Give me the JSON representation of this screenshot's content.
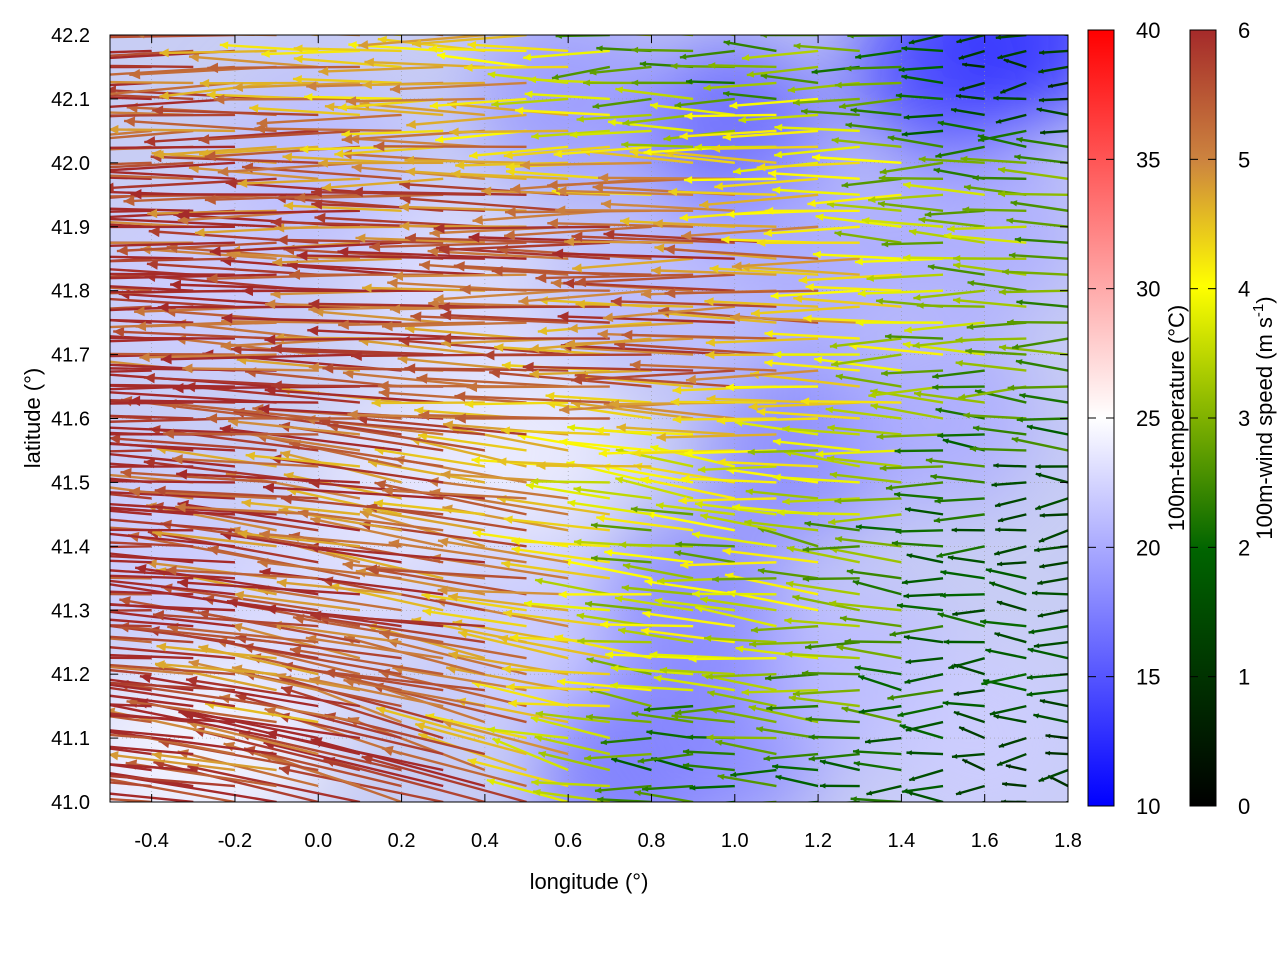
{
  "chart_data": {
    "type": "vector-field",
    "xlabel": "longitude (°)",
    "ylabel": "latitude (°)",
    "xlim": [
      -0.5,
      1.8
    ],
    "ylim": [
      41.0,
      42.2
    ],
    "xticks": [
      -0.4,
      -0.2,
      0.0,
      0.2,
      0.4,
      0.6,
      0.8,
      1.0,
      1.2,
      1.4,
      1.6,
      1.8
    ],
    "xtick_labels": [
      "-0.4",
      "-0.2",
      "0.0",
      "0.2",
      "0.4",
      "0.6",
      "0.8",
      "1.0",
      "1.2",
      "1.4",
      "1.6",
      "1.8"
    ],
    "yticks": [
      41.0,
      41.1,
      41.2,
      41.3,
      41.4,
      41.5,
      41.6,
      41.7,
      41.8,
      41.9,
      42.0,
      42.1,
      42.2
    ],
    "ytick_labels": [
      "41.0",
      "41.1",
      "41.2",
      "41.3",
      "41.4",
      "41.5",
      "41.6",
      "41.7",
      "41.8",
      "41.9",
      "42.0",
      "42.1",
      "42.2"
    ],
    "grid": true,
    "background_field": {
      "name": "100m-temperature (°C)",
      "range": [
        10,
        40
      ],
      "ticks": [
        "10",
        "15",
        "20",
        "25",
        "30",
        "35",
        "40"
      ],
      "colormap": [
        "#0000ff",
        "#ffffff",
        "#ff0000"
      ]
    },
    "arrow_field": {
      "name": "100m-wind speed (m s-1)",
      "label_main": "100m-wind speed (m s",
      "label_sup": "-1",
      "label_close": ")",
      "range": [
        0,
        6
      ],
      "ticks": [
        "0",
        "1",
        "2",
        "3",
        "4",
        "5",
        "6"
      ],
      "colormap": [
        "#000000",
        "#006400",
        "#ffff00",
        "#cd853f",
        "#a52a2a"
      ]
    },
    "temperature_samples": [
      {
        "lon": -0.45,
        "lat": 41.05,
        "t": 24
      },
      {
        "lon": -0.2,
        "lat": 41.1,
        "t": 24.5
      },
      {
        "lon": 0.0,
        "lat": 41.3,
        "t": 23
      },
      {
        "lon": 0.2,
        "lat": 41.5,
        "t": 23.5
      },
      {
        "lon": 0.3,
        "lat": 41.8,
        "t": 23
      },
      {
        "lon": 0.5,
        "lat": 41.55,
        "t": 24
      },
      {
        "lon": 0.5,
        "lat": 41.25,
        "t": 22
      },
      {
        "lon": 0.75,
        "lat": 41.05,
        "t": 17
      },
      {
        "lon": 0.9,
        "lat": 41.3,
        "t": 18
      },
      {
        "lon": 1.0,
        "lat": 41.1,
        "t": 18
      },
      {
        "lon": 1.3,
        "lat": 41.2,
        "t": 21
      },
      {
        "lon": 1.6,
        "lat": 41.1,
        "t": 22
      },
      {
        "lon": 1.15,
        "lat": 41.55,
        "t": 18
      },
      {
        "lon": 1.5,
        "lat": 41.6,
        "t": 20
      },
      {
        "lon": 1.6,
        "lat": 41.9,
        "t": 20
      },
      {
        "lon": 1.0,
        "lat": 42.05,
        "t": 16
      },
      {
        "lon": 0.6,
        "lat": 42.1,
        "t": 19
      },
      {
        "lon": 1.5,
        "lat": 42.15,
        "t": 14
      },
      {
        "lon": 1.7,
        "lat": 42.2,
        "t": 13
      },
      {
        "lon": 0.0,
        "lat": 42.0,
        "t": 21
      },
      {
        "lon": -0.3,
        "lat": 41.8,
        "t": 22
      },
      {
        "lon": 0.8,
        "lat": 41.8,
        "t": 21
      },
      {
        "lon": 1.2,
        "lat": 41.85,
        "t": 20
      },
      {
        "lon": -0.4,
        "lat": 41.4,
        "t": 22
      }
    ],
    "wind_regions": [
      {
        "lon": -0.5,
        "lat": 41.0,
        "u": -5.9,
        "v": 0.6
      },
      {
        "lon": 0.3,
        "lat": 41.0,
        "u": -5.0,
        "v": 1.5
      },
      {
        "lon": 0.9,
        "lat": 41.0,
        "u": -1.6,
        "v": 0.0
      },
      {
        "lon": 1.8,
        "lat": 41.0,
        "u": -0.8,
        "v": 0.0
      },
      {
        "lon": -0.5,
        "lat": 41.4,
        "u": -6.0,
        "v": 0.3
      },
      {
        "lon": 0.3,
        "lat": 41.4,
        "u": -5.0,
        "v": 0.8
      },
      {
        "lon": 0.9,
        "lat": 41.4,
        "u": -2.6,
        "v": 0.3
      },
      {
        "lon": 1.8,
        "lat": 41.4,
        "u": -1.2,
        "v": 0.0
      },
      {
        "lon": -0.5,
        "lat": 41.8,
        "u": -6.0,
        "v": 0.0
      },
      {
        "lon": 0.3,
        "lat": 41.8,
        "u": -5.5,
        "v": 0.1
      },
      {
        "lon": 0.9,
        "lat": 41.8,
        "u": -5.0,
        "v": 0.0
      },
      {
        "lon": 1.8,
        "lat": 41.8,
        "u": -2.2,
        "v": 0.0
      },
      {
        "lon": -0.5,
        "lat": 42.2,
        "u": -5.8,
        "v": -0.2
      },
      {
        "lon": 0.3,
        "lat": 42.2,
        "u": -4.0,
        "v": 0.0
      },
      {
        "lon": 0.9,
        "lat": 42.2,
        "u": -2.0,
        "v": 0.0
      },
      {
        "lon": 1.8,
        "lat": 42.2,
        "u": -0.8,
        "v": 0.0
      }
    ],
    "wind_grid_step": {
      "lon": 0.1,
      "lat": 0.025
    }
  }
}
